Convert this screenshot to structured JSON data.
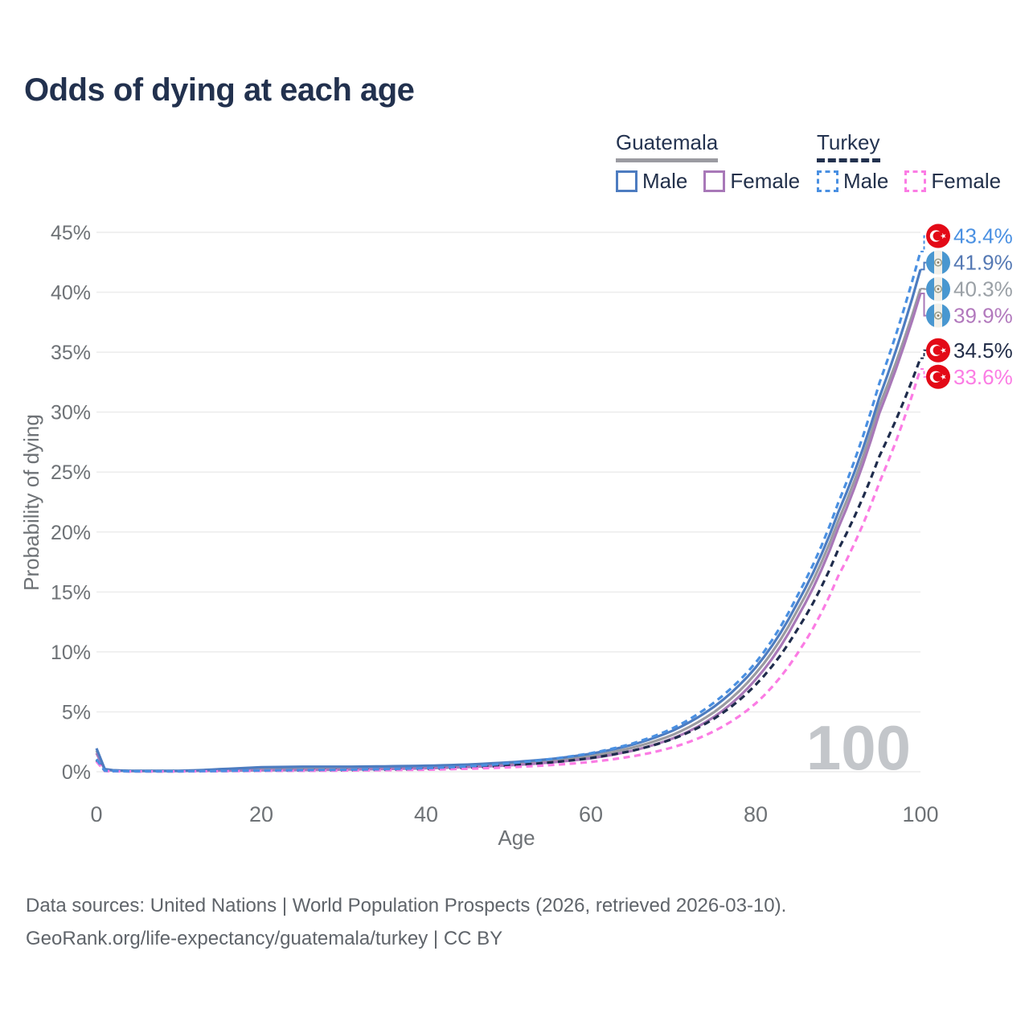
{
  "title": "Odds of dying at each age",
  "legend": {
    "groups": [
      {
        "name": "Guatemala",
        "underline_style": "solid",
        "underline_color": "#9b9ba1",
        "items": [
          {
            "label": "Male",
            "color": "#4d7cc0",
            "dashed": false
          },
          {
            "label": "Female",
            "color": "#a878b8",
            "dashed": false
          }
        ]
      },
      {
        "name": "Turkey",
        "underline_style": "dashed",
        "underline_color": "#22314e",
        "items": [
          {
            "label": "Male",
            "color": "#4a90e2",
            "dashed": true
          },
          {
            "label": "Female",
            "color": "#fb7ce4",
            "dashed": true
          }
        ]
      }
    ]
  },
  "chart_data": {
    "type": "line",
    "title": "Odds of dying at each age",
    "xlabel": "Age",
    "ylabel": "Probability of dying",
    "xlim": [
      0,
      100
    ],
    "ylim": [
      0,
      45
    ],
    "grid": true,
    "legend_position": "top-right",
    "x_ticks": [
      "0",
      "20",
      "40",
      "60",
      "80",
      "100"
    ],
    "x_tick_values": [
      0,
      20,
      40,
      60,
      80,
      100
    ],
    "y_ticks": [
      "0%",
      "5%",
      "10%",
      "15%",
      "20%",
      "25%",
      "30%",
      "35%",
      "40%",
      "45%"
    ],
    "y_tick_values": [
      0,
      5,
      10,
      15,
      20,
      25,
      30,
      35,
      40,
      45
    ],
    "hover_age_label": "100",
    "ages": [
      0,
      1,
      2,
      3,
      4,
      5,
      10,
      15,
      20,
      25,
      30,
      35,
      40,
      45,
      50,
      55,
      60,
      65,
      70,
      75,
      80,
      85,
      90,
      95,
      100
    ],
    "series": [
      {
        "id": "guatemala-both",
        "country": "Guatemala",
        "sex": "Both",
        "color": "#9b9ba1",
        "label_color": "#9aa0a6",
        "dashed": false,
        "flag": "guatemala",
        "end_label": "40.3%",
        "values": [
          1.75,
          0.2,
          0.12,
          0.09,
          0.07,
          0.07,
          0.07,
          0.15,
          0.25,
          0.28,
          0.3,
          0.33,
          0.39,
          0.49,
          0.65,
          0.9,
          1.3,
          2.0,
          3.1,
          5.0,
          8.2,
          13.4,
          20.9,
          30.5,
          40.3
        ]
      },
      {
        "id": "guatemala-female",
        "country": "Guatemala",
        "sex": "Female",
        "color": "#a878b8",
        "label_color": "#b279bd",
        "dashed": false,
        "flag": "guatemala",
        "end_label": "39.9%",
        "values": [
          1.55,
          0.18,
          0.1,
          0.08,
          0.06,
          0.06,
          0.06,
          0.09,
          0.12,
          0.15,
          0.18,
          0.23,
          0.29,
          0.39,
          0.53,
          0.77,
          1.12,
          1.75,
          2.8,
          4.6,
          7.7,
          12.8,
          20.3,
          29.9,
          39.9
        ]
      },
      {
        "id": "guatemala-male",
        "country": "Guatemala",
        "sex": "Male",
        "color": "#4d7cc0",
        "label_color": "#5579b4",
        "dashed": false,
        "flag": "guatemala",
        "end_label": "41.9%",
        "values": [
          1.95,
          0.22,
          0.13,
          0.1,
          0.08,
          0.08,
          0.08,
          0.22,
          0.38,
          0.42,
          0.42,
          0.45,
          0.5,
          0.6,
          0.78,
          1.05,
          1.5,
          2.25,
          3.45,
          5.45,
          8.7,
          14.0,
          21.6,
          31.2,
          41.9
        ]
      },
      {
        "id": "turkey-both",
        "country": "Turkey",
        "sex": "Both",
        "color": "#1f2c4c",
        "label_color": "#232e49",
        "dashed": true,
        "flag": "turkey",
        "end_label": "34.5%",
        "values": [
          0.95,
          0.08,
          0.05,
          0.04,
          0.035,
          0.035,
          0.035,
          0.06,
          0.09,
          0.11,
          0.13,
          0.17,
          0.23,
          0.34,
          0.52,
          0.77,
          1.15,
          1.75,
          2.75,
          4.45,
          7.25,
          11.8,
          18.5,
          26.3,
          34.5
        ]
      },
      {
        "id": "turkey-female",
        "country": "Turkey",
        "sex": "Female",
        "color": "#fb7ce4",
        "label_color": "#fb7ce4",
        "dashed": true,
        "flag": "turkey",
        "end_label": "33.6%",
        "values": [
          0.85,
          0.07,
          0.04,
          0.035,
          0.03,
          0.03,
          0.03,
          0.05,
          0.07,
          0.08,
          0.1,
          0.13,
          0.17,
          0.25,
          0.37,
          0.55,
          0.82,
          1.28,
          2.05,
          3.4,
          5.7,
          9.8,
          16.3,
          24.1,
          33.6
        ]
      },
      {
        "id": "turkey-male",
        "country": "Turkey",
        "sex": "Male",
        "color": "#4a90e2",
        "label_color": "#4a90e2",
        "dashed": true,
        "flag": "turkey",
        "end_label": "43.4%",
        "values": [
          1.05,
          0.09,
          0.06,
          0.05,
          0.04,
          0.04,
          0.04,
          0.07,
          0.11,
          0.14,
          0.17,
          0.22,
          0.3,
          0.45,
          0.7,
          1.05,
          1.55,
          2.35,
          3.65,
          5.8,
          9.1,
          14.6,
          22.4,
          32.4,
          43.4
        ]
      }
    ]
  },
  "footer": {
    "line1": "Data sources: United Nations | World Population Prospects (2026, retrieved 2026-03-10).",
    "line2": "GeoRank.org/life-expectancy/guatemala/turkey | CC BY"
  },
  "colors": {
    "title": "#22314e",
    "axis_text": "#6e7276",
    "grid": "#ececec",
    "watermark": "#c3c6ca",
    "background": "#ffffff",
    "turkey_flag_red": "#e30a17",
    "guatemala_flag_blue": "#4997d0"
  }
}
